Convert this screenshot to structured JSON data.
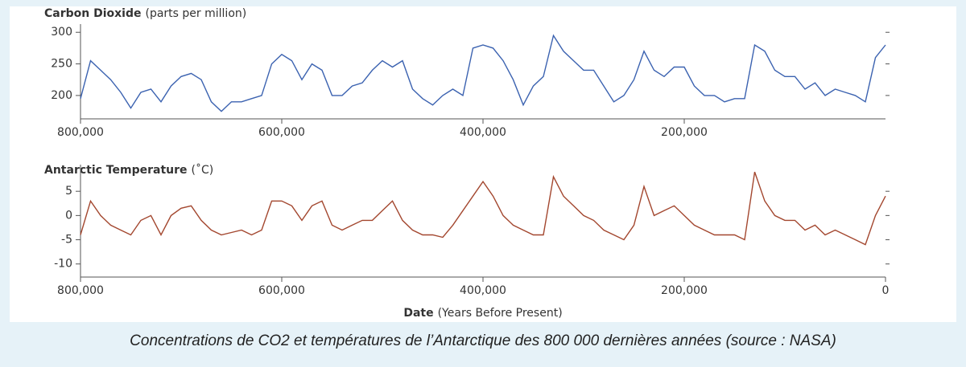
{
  "caption": "Concentrations de CO2 et températures de l’Antarctique des 800 000 dernières années (source : NASA)",
  "chart_data": [
    {
      "type": "line",
      "title": "Carbon Dioxide",
      "subtitle": "(parts per million)",
      "color": "#3b62b0",
      "x": [
        800000,
        790000,
        780000,
        770000,
        760000,
        750000,
        740000,
        730000,
        720000,
        710000,
        700000,
        690000,
        680000,
        670000,
        660000,
        650000,
        640000,
        630000,
        620000,
        610000,
        600000,
        590000,
        580000,
        570000,
        560000,
        550000,
        540000,
        530000,
        520000,
        510000,
        500000,
        490000,
        480000,
        470000,
        460000,
        450000,
        440000,
        430000,
        420000,
        410000,
        400000,
        390000,
        380000,
        370000,
        360000,
        350000,
        340000,
        330000,
        320000,
        310000,
        300000,
        290000,
        280000,
        270000,
        260000,
        250000,
        240000,
        230000,
        220000,
        210000,
        200000,
        190000,
        180000,
        170000,
        160000,
        150000,
        140000,
        130000,
        120000,
        110000,
        100000,
        90000,
        80000,
        70000,
        60000,
        50000,
        40000,
        30000,
        20000,
        10000,
        0
      ],
      "values": [
        195,
        255,
        240,
        225,
        205,
        180,
        205,
        210,
        190,
        215,
        230,
        235,
        225,
        190,
        175,
        190,
        190,
        195,
        200,
        250,
        265,
        255,
        225,
        250,
        240,
        200,
        200,
        215,
        220,
        240,
        255,
        245,
        255,
        210,
        195,
        185,
        200,
        210,
        200,
        275,
        280,
        275,
        255,
        225,
        185,
        215,
        230,
        295,
        270,
        255,
        240,
        240,
        215,
        190,
        200,
        225,
        270,
        240,
        230,
        245,
        245,
        215,
        200,
        200,
        190,
        195,
        195,
        280,
        270,
        240,
        230,
        230,
        210,
        220,
        200,
        210,
        205,
        200,
        190,
        260,
        280
      ],
      "xlim": [
        800000,
        0
      ],
      "xticks": [
        {
          "value": 800000,
          "label": "800,000"
        },
        {
          "value": 600000,
          "label": "600,000"
        },
        {
          "value": 400000,
          "label": "400,000"
        },
        {
          "value": 200000,
          "label": "200,000"
        }
      ],
      "ylim": [
        163,
        313
      ],
      "yticks": [
        200,
        250,
        300
      ]
    },
    {
      "type": "line",
      "title": "Antarctic Temperature",
      "subtitle": "(˚C)",
      "color": "#a3472f",
      "x": [
        800000,
        790000,
        780000,
        770000,
        760000,
        750000,
        740000,
        730000,
        720000,
        710000,
        700000,
        690000,
        680000,
        670000,
        660000,
        650000,
        640000,
        630000,
        620000,
        610000,
        600000,
        590000,
        580000,
        570000,
        560000,
        550000,
        540000,
        530000,
        520000,
        510000,
        500000,
        490000,
        480000,
        470000,
        460000,
        450000,
        440000,
        430000,
        420000,
        410000,
        400000,
        390000,
        380000,
        370000,
        360000,
        350000,
        340000,
        330000,
        320000,
        310000,
        300000,
        290000,
        280000,
        270000,
        260000,
        250000,
        240000,
        230000,
        220000,
        210000,
        200000,
        190000,
        180000,
        170000,
        160000,
        150000,
        140000,
        130000,
        120000,
        110000,
        100000,
        90000,
        80000,
        70000,
        60000,
        50000,
        40000,
        30000,
        20000,
        10000,
        0
      ],
      "values": [
        -4,
        3,
        0,
        -2,
        -3,
        -4,
        -1,
        0,
        -4,
        0,
        1.5,
        2,
        -1,
        -3,
        -4,
        -3.5,
        -3,
        -4,
        -3,
        3,
        3,
        2,
        -1,
        2,
        3,
        -2,
        -3,
        -2,
        -1,
        -1,
        1,
        3,
        -1,
        -3,
        -4,
        -4,
        -4.5,
        -2,
        1,
        4,
        7,
        4,
        0,
        -2,
        -3,
        -4,
        -4,
        8,
        4,
        2,
        0,
        -1,
        -3,
        -4,
        -5,
        -2,
        6,
        0,
        1,
        2,
        0,
        -2,
        -3,
        -4,
        -4,
        -4,
        -5,
        9,
        3,
        0,
        -1,
        -1,
        -3,
        -2,
        -4,
        -3,
        -4,
        -5,
        -6,
        0,
        4
      ],
      "xlim": [
        800000,
        0
      ],
      "xticks": [
        {
          "value": 800000,
          "label": "800,000"
        },
        {
          "value": 600000,
          "label": "600,000"
        },
        {
          "value": 400000,
          "label": "400,000"
        },
        {
          "value": 200000,
          "label": "200,000"
        },
        0
      ],
      "ylim": [
        -12.7,
        10.5
      ],
      "yticks": [
        -10,
        -5,
        0,
        5
      ],
      "xlabel": "Date",
      "xlabel_note": "(Years Before Present)"
    }
  ]
}
